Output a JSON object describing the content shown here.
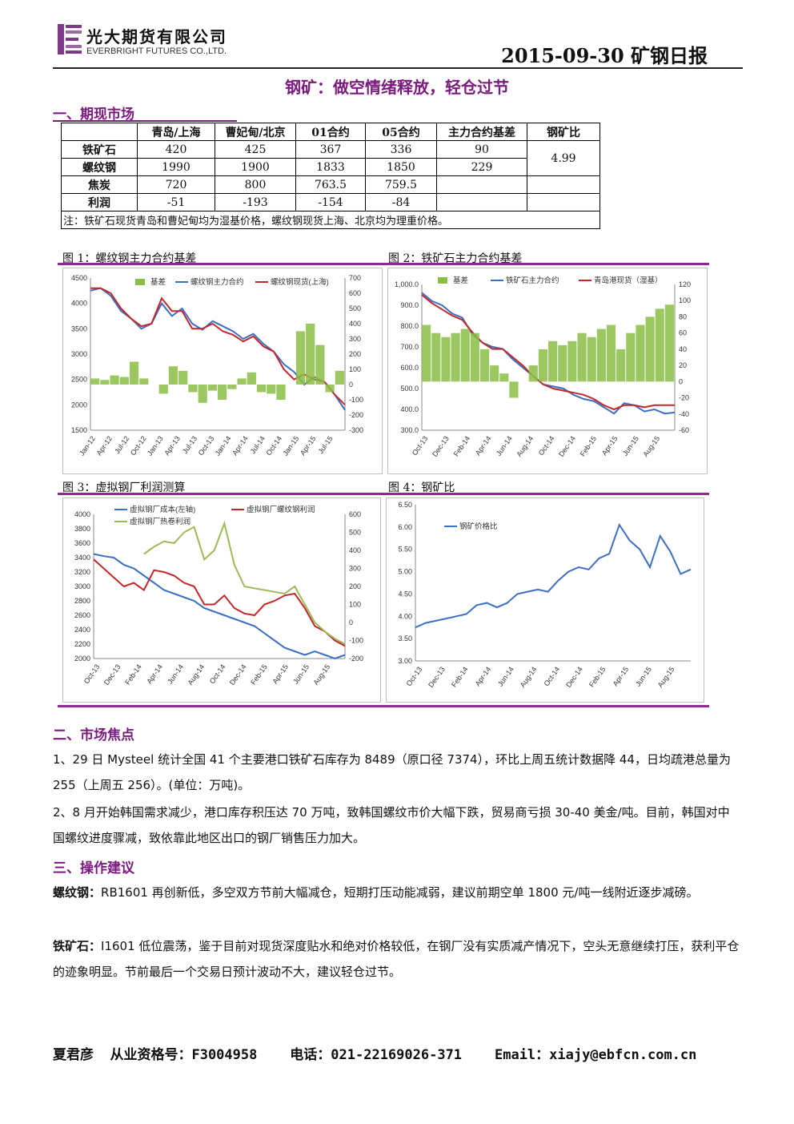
{
  "header": {
    "company_cn": "光大期货有限公司",
    "company_en": "EVERBRIGHT FUTURES CO.,LTD.",
    "report_title": "2015-09-30 矿钢日报",
    "logo_color": "#7b3a86"
  },
  "main_title": "钢矿：做空情绪释放，轻仓过节",
  "section1": {
    "title": "一、期现市场",
    "table": {
      "headers": [
        "",
        "青岛/上海",
        "曹妃甸/北京",
        "01合约",
        "05合约",
        "主力合约基差",
        "钢矿比"
      ],
      "rows": [
        {
          "label": "铁矿石",
          "cells": [
            "420",
            "425",
            "367",
            "336",
            "90"
          ]
        },
        {
          "label": "螺纹钢",
          "cells": [
            "1990",
            "1900",
            "1833",
            "1850",
            "229"
          ]
        },
        {
          "label": "焦炭",
          "cells": [
            "720",
            "800",
            "763.5",
            "759.5",
            ""
          ]
        },
        {
          "label": "利润",
          "cells": [
            "-51",
            "-193",
            "-154",
            "-84",
            ""
          ]
        }
      ],
      "ratio": "4.99",
      "note": "注：铁矿石现货青岛和曹妃甸均为湿基价格，螺纹钢现货上海、北京均为理重价格。"
    }
  },
  "figures": {
    "fig1_label": "图 1：螺纹钢主力合约基差",
    "fig2_label": "图 2：铁矿石主力合约基差",
    "fig3_label": "图 3：虚拟钢厂利润测算",
    "fig4_label": "图 4：钢矿比"
  },
  "chart_data": [
    {
      "type": "line",
      "legend": [
        "基差",
        "螺纹钢主力合约",
        "螺纹钢现货(上海)"
      ],
      "x_ticks": [
        "Jan-12",
        "Apr-12",
        "Jul-12",
        "Oct-12",
        "Jan-13",
        "Apr-13",
        "Jul-13",
        "Oct-13",
        "Jan-14",
        "Apr-14",
        "Jul-14",
        "Oct-14",
        "Jan-15",
        "Apr-15",
        "Jul-15"
      ],
      "y_left_ticks": [
        4500,
        4000,
        3500,
        3000,
        2500,
        2000,
        1500
      ],
      "y_right_ticks": [
        700,
        600,
        500,
        400,
        300,
        200,
        100,
        0,
        -100,
        -200,
        -300
      ],
      "ylim_left": [
        1500,
        4500
      ],
      "ylim_right": [
        -300,
        700
      ],
      "series": [
        {
          "name": "螺纹钢主力合约",
          "color": "#3a6fc4",
          "values": [
            4250,
            4300,
            4150,
            3850,
            3700,
            3500,
            3600,
            4000,
            3750,
            3900,
            3600,
            3480,
            3650,
            3550,
            3450,
            3300,
            3400,
            3200,
            3050,
            2800,
            2650,
            2400,
            2550,
            2450,
            2200,
            1900
          ]
        },
        {
          "name": "螺纹钢现货(上海)",
          "color": "#c2282a",
          "values": [
            4300,
            4300,
            4200,
            3900,
            3700,
            3550,
            3600,
            4100,
            3850,
            3850,
            3500,
            3500,
            3600,
            3450,
            3380,
            3250,
            3350,
            3150,
            3050,
            2700,
            2500,
            2600,
            2500,
            2450,
            2200,
            2000
          ]
        },
        {
          "name": "基差",
          "color": "#8cbd45",
          "values": [
            40,
            30,
            60,
            50,
            150,
            40,
            0,
            -60,
            120,
            90,
            -50,
            -120,
            -40,
            -100,
            -30,
            40,
            80,
            -50,
            -60,
            -100,
            0,
            350,
            400,
            260,
            -50,
            90
          ]
        }
      ]
    },
    {
      "type": "line",
      "legend": [
        "基差",
        "铁矿石主力合约",
        "青岛港现货（湿基）"
      ],
      "x_ticks": [
        "Oct-13",
        "Dec-13",
        "Feb-14",
        "Apr-14",
        "Jun-14",
        "Aug-14",
        "Oct-14",
        "Dec-14",
        "Feb-15",
        "Apr-15",
        "Jun-15",
        "Aug-15"
      ],
      "y_left_ticks": [
        "1,000.0",
        "900.0",
        "800.0",
        "700.0",
        "600.0",
        "500.0",
        "400.0",
        "300.0"
      ],
      "y_right_ticks": [
        120,
        100,
        80,
        60,
        40,
        20,
        0,
        -20,
        -40,
        -60
      ],
      "ylim_left": [
        300,
        1000
      ],
      "ylim_right": [
        -60,
        120
      ],
      "series": [
        {
          "name": "铁矿石主力合约",
          "color": "#3a6fc4",
          "values": [
            960,
            920,
            900,
            860,
            840,
            760,
            720,
            700,
            690,
            640,
            600,
            560,
            520,
            510,
            500,
            470,
            450,
            440,
            410,
            380,
            430,
            420,
            390,
            400,
            380,
            385
          ]
        },
        {
          "name": "青岛港现货（湿基）",
          "color": "#c2282a",
          "values": [
            950,
            910,
            880,
            850,
            830,
            770,
            720,
            690,
            690,
            650,
            610,
            560,
            520,
            500,
            490,
            480,
            470,
            450,
            420,
            400,
            420,
            420,
            410,
            420,
            420,
            420
          ]
        },
        {
          "name": "基差",
          "color": "#8cbd45",
          "values": [
            70,
            60,
            55,
            60,
            65,
            60,
            40,
            20,
            10,
            -20,
            0,
            20,
            40,
            50,
            45,
            50,
            60,
            55,
            65,
            70,
            40,
            60,
            70,
            80,
            90,
            95
          ]
        }
      ]
    },
    {
      "type": "line",
      "legend": [
        "虚拟钢厂成本(左轴)",
        "虚拟钢厂螺纹钢利润",
        "虚拟钢厂热卷利润"
      ],
      "x_ticks": [
        "Oct-13",
        "Dec-13",
        "Feb-14",
        "Apr-14",
        "Jun-14",
        "Aug-14",
        "Oct-14",
        "Dec-14",
        "Feb-15",
        "Apr-15",
        "Jun-15",
        "Aug-15"
      ],
      "y_left_ticks": [
        4000,
        3800,
        3600,
        3400,
        3200,
        3000,
        2800,
        2600,
        2400,
        2200,
        2000
      ],
      "y_right_ticks": [
        600,
        500,
        400,
        300,
        200,
        100,
        0,
        -100,
        -200
      ],
      "ylim_left": [
        2000,
        4000
      ],
      "ylim_right": [
        -200,
        600
      ],
      "series": [
        {
          "name": "虚拟钢厂成本(左轴)",
          "color": "#3a6fc4",
          "values": [
            3450,
            3420,
            3400,
            3300,
            3250,
            3150,
            3050,
            2950,
            2900,
            2850,
            2800,
            2700,
            2650,
            2600,
            2550,
            2500,
            2450,
            2350,
            2250,
            2150,
            2100,
            2050,
            2100,
            2050,
            2000,
            2050
          ]
        },
        {
          "name": "虚拟钢厂螺纹钢利润",
          "color": "#c2282a",
          "values": [
            350,
            300,
            250,
            200,
            220,
            180,
            290,
            280,
            260,
            220,
            200,
            100,
            100,
            150,
            80,
            50,
            40,
            100,
            120,
            150,
            160,
            80,
            -20,
            -50,
            -100,
            -130
          ]
        },
        {
          "name": "虚拟钢厂热卷利润",
          "color": "#9bbb59",
          "values": [
            null,
            null,
            null,
            null,
            null,
            380,
            420,
            450,
            440,
            500,
            530,
            350,
            400,
            550,
            320,
            200,
            190,
            180,
            170,
            160,
            200,
            100,
            0,
            -50,
            -90,
            -120
          ]
        }
      ]
    },
    {
      "type": "line",
      "legend": [
        "钢矿价格比"
      ],
      "x_ticks": [
        "Oct-13",
        "Dec-13",
        "Feb-14",
        "Apr-14",
        "Jun-14",
        "Aug-14",
        "Oct-14",
        "Dec-14",
        "Feb-15",
        "Apr-15",
        "Jun-15",
        "Aug-15"
      ],
      "y_ticks": [
        "6.50",
        "6.00",
        "5.50",
        "5.00",
        "4.50",
        "4.00",
        "3.50",
        "3.00"
      ],
      "ylim": [
        3.0,
        6.5
      ],
      "series": [
        {
          "name": "钢矿价格比",
          "color": "#3a6fc4",
          "values": [
            3.75,
            3.85,
            3.9,
            3.95,
            4.0,
            4.05,
            4.25,
            4.3,
            4.2,
            4.3,
            4.5,
            4.55,
            4.6,
            4.55,
            4.8,
            5.0,
            5.1,
            5.05,
            5.3,
            5.4,
            6.05,
            5.7,
            5.5,
            5.1,
            5.8,
            5.45,
            4.95,
            5.05
          ]
        }
      ]
    }
  ],
  "section2": {
    "title": "二、市场焦点",
    "p1": "1、29 日 Mysteel 统计全国 41 个主要港口铁矿石库存为 8489（原口径 7374），环比上周五统计数据降 44，日均疏港总量为 255（上周五 256）。(单位：万吨)。",
    "p2": "2、8 月开始韩国需求减少，港口库存积压达 70 万吨，致韩国螺纹市价大幅下跌，贸易商亏损 30-40 美金/吨。目前，韩国对中国螺纹进度骤减，致依靠此地区出口的钢厂销售压力加大。"
  },
  "section3": {
    "title": "三、操作建议",
    "rebar_lead": "螺纹钢：",
    "rebar_text": "RB1601 再创新低，多空双方节前大幅减仓，短期打压动能减弱，建议前期空单 1800 元/吨一线附近逐步减磅。",
    "ore_lead": "铁矿石：",
    "ore_text": "I1601 低位震荡，鉴于目前对现货深度贴水和绝对价格较低，在钢厂没有实质减产情况下，空头无意继续打压，获利平仓的迹象明显。节前最后一个交易日预计波动不大，建议轻仓过节。"
  },
  "footer": {
    "line": "夏君彦  从业资格号：F3004958    电话：021-22169026-371    Email：xiajy@ebfcn.com.cn"
  }
}
